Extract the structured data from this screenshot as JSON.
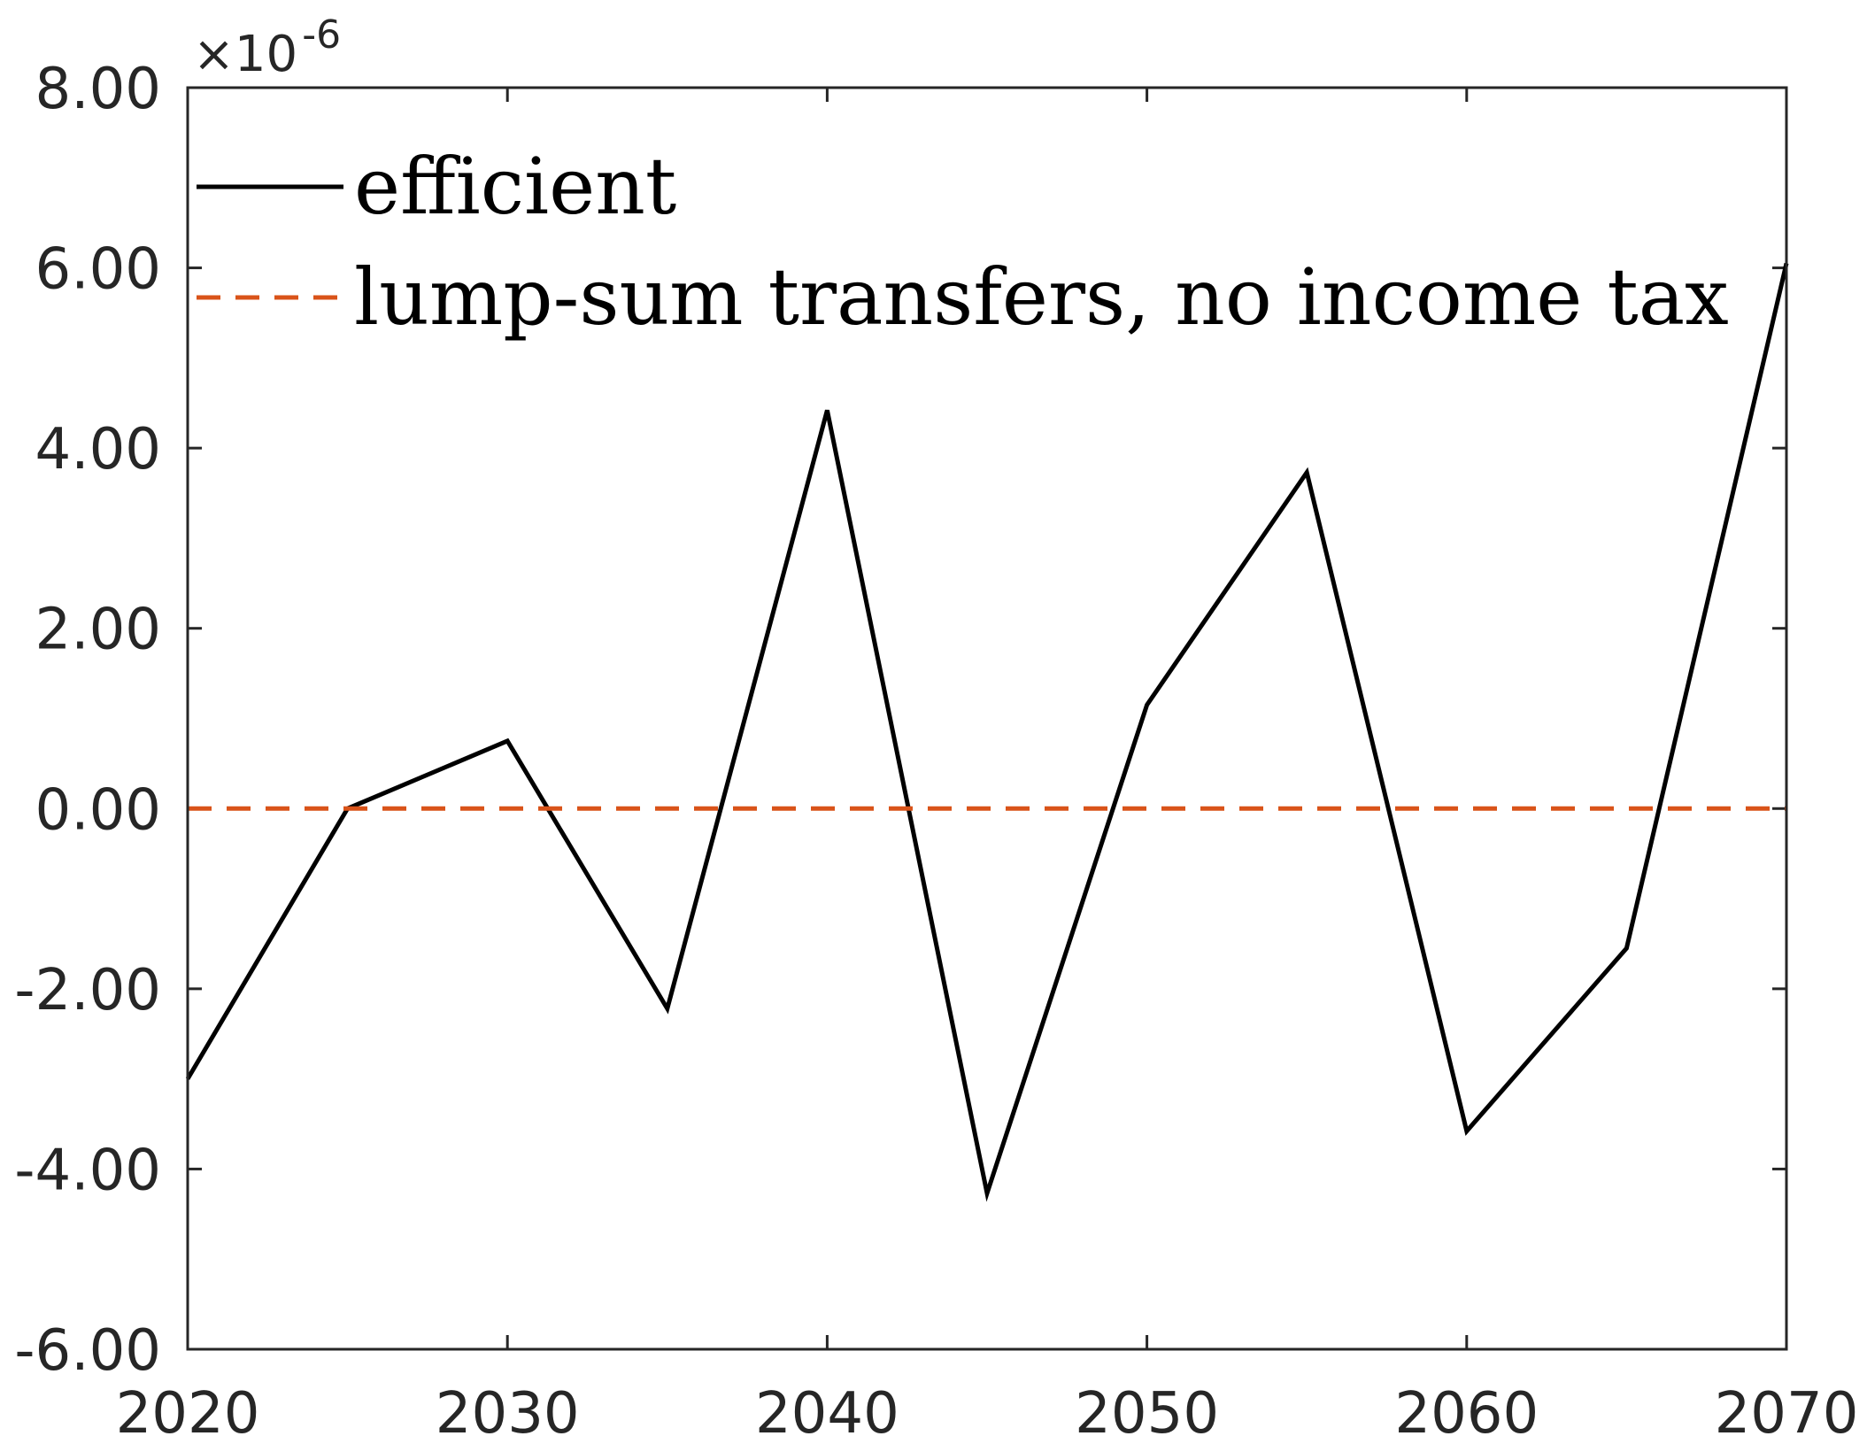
{
  "chart_data": {
    "type": "line",
    "title": "",
    "xlabel": "",
    "ylabel": "",
    "x": [
      2020,
      2025,
      2030,
      2035,
      2040,
      2045,
      2050,
      2055,
      2060,
      2065,
      2070
    ],
    "series": [
      {
        "name": "efficient",
        "color": "#000000",
        "style": "solid",
        "values": [
          -3.0,
          0.0,
          0.75,
          -2.22,
          4.42,
          -4.27,
          1.15,
          3.73,
          -3.58,
          -1.55,
          6.05
        ]
      },
      {
        "name": "lump-sum transfers, no income tax",
        "color": "#D95319",
        "style": "dashed",
        "values": [
          0,
          0,
          0,
          0,
          0,
          0,
          0,
          0,
          0,
          0,
          0
        ]
      }
    ],
    "xlim": [
      2020,
      2070
    ],
    "ylim": [
      -6.0,
      8.0
    ],
    "x_ticks": [
      2020,
      2030,
      2040,
      2050,
      2060,
      2070
    ],
    "x_tick_labels": [
      "2020",
      "2030",
      "2040",
      "2050",
      "2060",
      "2070"
    ],
    "y_ticks": [
      -6,
      -4,
      -2,
      0,
      2,
      4,
      6,
      8
    ],
    "y_tick_labels": [
      "-6.00",
      "-4.00",
      "-2.00",
      "0.00",
      "2.00",
      "4.00",
      "6.00",
      "8.00"
    ],
    "y_exponent": {
      "base": "×10",
      "power": "-6"
    },
    "grid": false,
    "legend_position": "top-left"
  }
}
